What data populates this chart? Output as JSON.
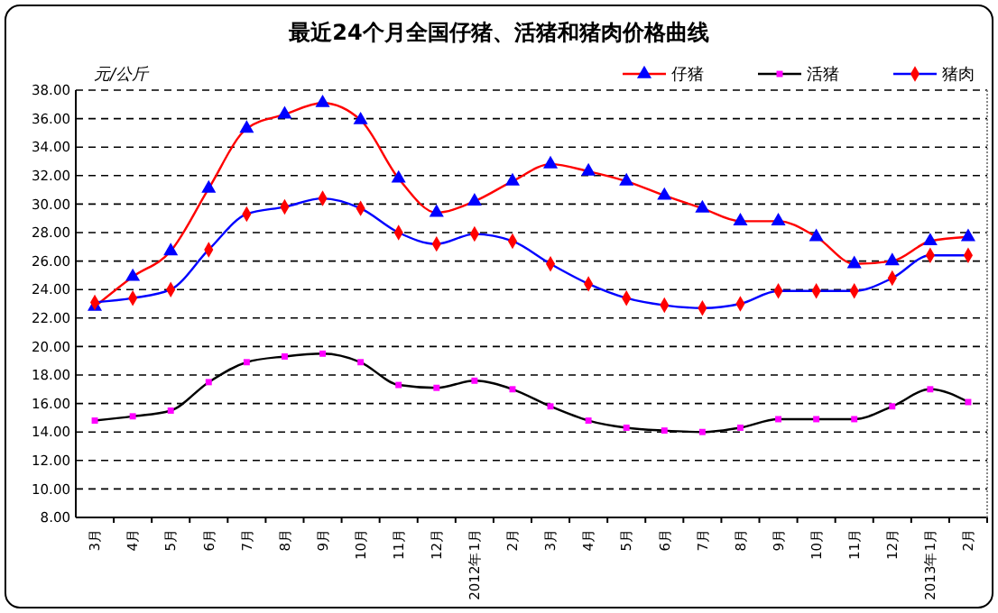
{
  "chart_data": {
    "type": "line",
    "title": "最近24个月全国仔猪、活猪和猪肉价格曲线",
    "ylabel": "元/公斤",
    "categories": [
      "3月",
      "4月",
      "5月",
      "6月",
      "7月",
      "8月",
      "9月",
      "10月",
      "11月",
      "12月",
      "2012年1月",
      "2月",
      "3月",
      "4月",
      "5月",
      "6月",
      "7月",
      "8月",
      "9月",
      "10月",
      "11月",
      "12月",
      "2013年1月",
      "2月"
    ],
    "series": [
      {
        "name": "仔猪",
        "color": "#ff0000",
        "marker": "triangle",
        "colors": [
          "#0000ff",
          "#0000ff",
          "#0000ff",
          "#0000ff",
          "#0000ff",
          "#0000ff",
          "#0000ff",
          "#0000ff",
          "#0000ff",
          "#0000ff",
          "#0000ff",
          "#0000ff",
          "#0000ff",
          "#0000ff",
          "#0000ff",
          "#0000ff",
          "#0000ff",
          "#0000ff",
          "#0000ff",
          "#0000ff",
          "#0000ff",
          "#0000ff",
          "#0000ff",
          "#0000ff"
        ],
        "values": [
          22.8,
          24.9,
          26.7,
          31.1,
          35.3,
          36.3,
          37.1,
          35.9,
          31.8,
          29.4,
          30.2,
          31.6,
          32.8,
          32.3,
          31.6,
          30.6,
          29.7,
          28.8,
          28.8,
          27.7,
          25.8,
          26.0,
          27.4,
          27.7
        ]
      },
      {
        "name": "活猪",
        "color": "#000000",
        "marker": "square",
        "colors": [
          "#ff00ff",
          "#ff00ff",
          "#ff00ff",
          "#ff00ff",
          "#ff00ff",
          "#ff00ff",
          "#ff00ff",
          "#ff00ff",
          "#ff00ff",
          "#ff00ff",
          "#ff00ff",
          "#ff00ff",
          "#ff00ff",
          "#ff00ff",
          "#ff00ff",
          "#ff00ff",
          "#ff00ff",
          "#ff00ff",
          "#ff00ff",
          "#ff00ff",
          "#ff00ff",
          "#ff00ff",
          "#ff00ff",
          "#ff00ff"
        ],
        "values": [
          14.8,
          15.1,
          15.5,
          17.5,
          18.9,
          19.3,
          19.5,
          18.9,
          17.3,
          17.1,
          17.6,
          17.0,
          15.8,
          14.8,
          14.3,
          14.1,
          14.0,
          14.3,
          14.9,
          14.9,
          14.9,
          15.8,
          17.0,
          16.1
        ]
      },
      {
        "name": "猪肉",
        "color": "#0000ff",
        "marker": "diamond",
        "colors": [
          "#ff0000",
          "#ff0000",
          "#ff0000",
          "#ff0000",
          "#ff0000",
          "#ff0000",
          "#ff0000",
          "#ff0000",
          "#ff0000",
          "#ff0000",
          "#ff0000",
          "#ff0000",
          "#ff0000",
          "#ff0000",
          "#ff0000",
          "#ff0000",
          "#ff0000",
          "#ff0000",
          "#ff0000",
          "#ff0000",
          "#ff0000",
          "#ff0000",
          "#ff0000",
          "#ff0000"
        ],
        "values": [
          23.1,
          23.4,
          24.0,
          26.8,
          29.3,
          29.8,
          30.4,
          29.7,
          28.0,
          27.2,
          27.9,
          27.4,
          25.8,
          24.4,
          23.4,
          22.9,
          22.7,
          23.0,
          23.9,
          23.9,
          23.9,
          24.8,
          26.4,
          26.4
        ]
      }
    ],
    "ylim": [
      8,
      38
    ],
    "yticks": [
      {
        "value": 8,
        "label": "8.00"
      },
      {
        "value": 10,
        "label": "10.00"
      },
      {
        "value": 12,
        "label": "12.00"
      },
      {
        "value": 14,
        "label": "14.00"
      },
      {
        "value": 16,
        "label": "16.00"
      },
      {
        "value": 18,
        "label": "18.00"
      },
      {
        "value": 20,
        "label": "20.00"
      },
      {
        "value": 22,
        "label": "22.00"
      },
      {
        "value": 24,
        "label": "24.00"
      },
      {
        "value": 26,
        "label": "26.00"
      },
      {
        "value": 28,
        "label": "28.00"
      },
      {
        "value": 30,
        "label": "30.00"
      },
      {
        "value": 32,
        "label": "32.00"
      },
      {
        "value": 34,
        "label": "34.00"
      },
      {
        "value": 36,
        "label": "36.00"
      },
      {
        "value": 38,
        "label": "38.00"
      }
    ],
    "grid": "y",
    "legend": "top right",
    "line_style": "solid"
  }
}
